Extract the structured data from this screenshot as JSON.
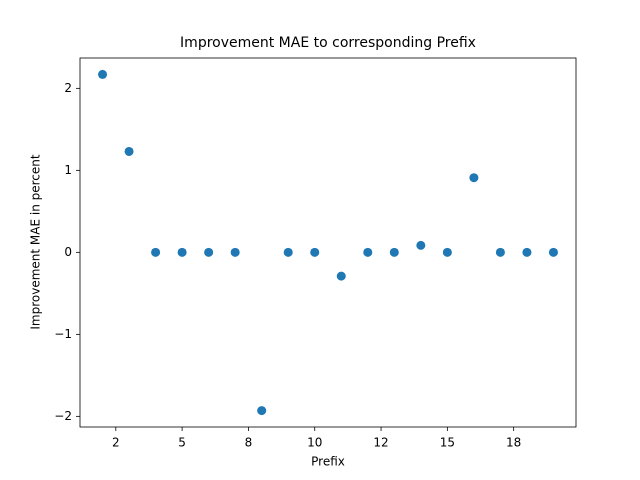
{
  "chart_data": {
    "type": "scatter",
    "title": "Improvement MAE to corresponding Prefix",
    "x_label": "Prefix",
    "y_label": "Improvement MAE in percent",
    "x": [
      2,
      3,
      4,
      5,
      6,
      7,
      8,
      9,
      10,
      11,
      12,
      13,
      14,
      15,
      16,
      17,
      18,
      19
    ],
    "values": [
      2.17,
      1.23,
      0,
      0,
      0,
      0,
      -1.93,
      0,
      0,
      -0.29,
      0,
      0,
      0.085,
      0,
      0.91,
      0,
      0,
      0
    ],
    "color": "#1f77b4",
    "xlim": [
      1.15,
      19.85
    ],
    "ylim": [
      -2.13,
      2.37
    ],
    "xticks": [
      {
        "value": 2.5,
        "label": "2"
      },
      5,
      {
        "value": 7.5,
        "label": "8"
      },
      10,
      {
        "value": 12.5,
        "label": "12"
      },
      15,
      {
        "value": 17.5,
        "label": "18"
      }
    ],
    "yticks": [
      {
        "value": -2,
        "label": "−2"
      },
      {
        "value": -1,
        "label": "−1"
      },
      0,
      1,
      2
    ],
    "grid": false
  }
}
